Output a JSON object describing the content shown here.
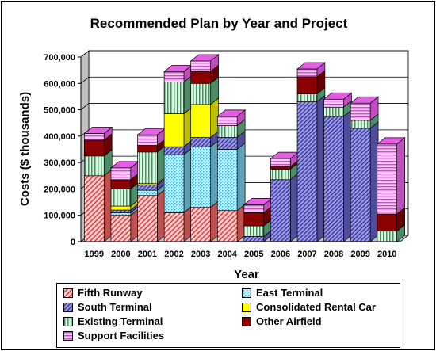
{
  "chart_data": {
    "type": "bar",
    "stacked": true,
    "three_d": true,
    "title": "Recommended Plan by Year and Project",
    "xlabel": "Year",
    "ylabel": "Costs ($ thousands)",
    "ylim": [
      0,
      700000
    ],
    "yticks": [
      "0",
      "100,000",
      "200,000",
      "300,000",
      "400,000",
      "500,000",
      "600,000",
      "700,000"
    ],
    "grid": true,
    "legend_position": "bottom",
    "categories": [
      "1999",
      "2000",
      "2001",
      "2002",
      "2003",
      "2004",
      "2005",
      "2006",
      "2007",
      "2008",
      "2009",
      "2010"
    ],
    "series": [
      {
        "name": "Fifth Runway",
        "color": "#ff6b6b",
        "pattern": "diag-red",
        "values": [
          250000,
          100000,
          175000,
          110000,
          130000,
          118000,
          0,
          0,
          0,
          0,
          0,
          0
        ]
      },
      {
        "name": "East Terminal",
        "color": "#7fd6f0",
        "pattern": "dots-cyan",
        "values": [
          0,
          10000,
          20000,
          220000,
          230000,
          232000,
          0,
          0,
          0,
          0,
          0,
          0
        ]
      },
      {
        "name": "South Terminal",
        "color": "#6666cc",
        "pattern": "diag-blue",
        "values": [
          0,
          10000,
          20000,
          30000,
          35000,
          45000,
          20000,
          235000,
          530000,
          475000,
          430000,
          0
        ]
      },
      {
        "name": "Consolidated Rental Car",
        "color": "#ffff00",
        "pattern": "solid-yellow",
        "values": [
          0,
          15000,
          5000,
          125000,
          125000,
          0,
          0,
          0,
          0,
          0,
          0,
          0
        ]
      },
      {
        "name": "Existing Terminal",
        "color": "#66bb88",
        "pattern": "vlines-green",
        "values": [
          75000,
          65000,
          120000,
          120000,
          80000,
          45000,
          40000,
          40000,
          30000,
          35000,
          30000,
          40000
        ]
      },
      {
        "name": "Other Airfield",
        "color": "#8b0000",
        "pattern": "solid-darkred",
        "values": [
          60000,
          35000,
          25000,
          0,
          45000,
          0,
          50000,
          10000,
          65000,
          0,
          0,
          65000
        ]
      },
      {
        "name": "Support Facilities",
        "color": "#ff66ff",
        "pattern": "hlines-magenta",
        "values": [
          25000,
          45000,
          40000,
          40000,
          40000,
          35000,
          30000,
          30000,
          30000,
          30000,
          65000,
          265000
        ]
      }
    ]
  }
}
